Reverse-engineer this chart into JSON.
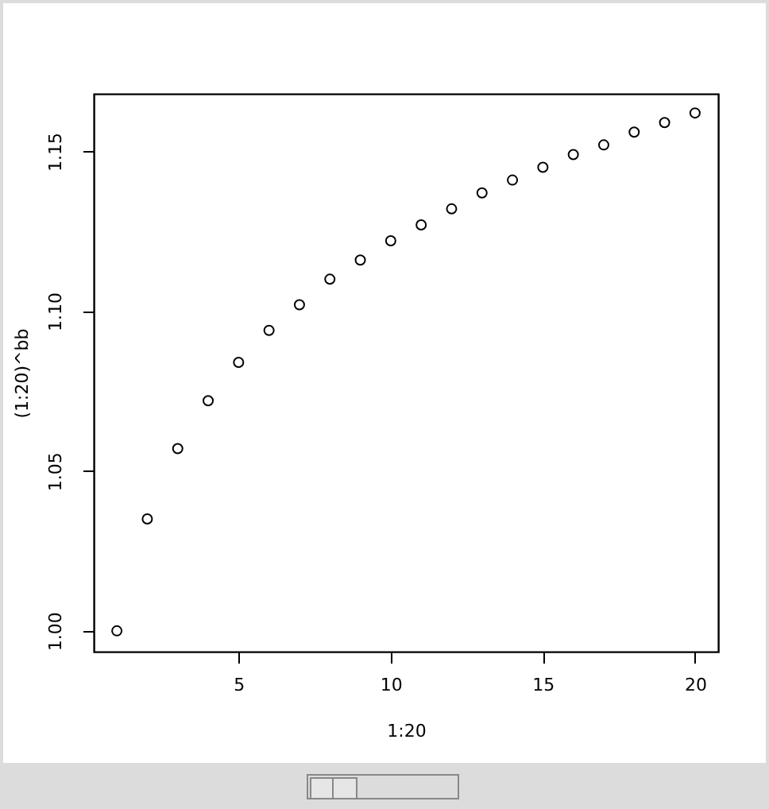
{
  "chart_data": {
    "type": "scatter",
    "xlabel": "1:20",
    "ylabel": "(1:20)^bb",
    "marker": "circle",
    "grid": false,
    "x": [
      1,
      2,
      3,
      4,
      5,
      6,
      7,
      8,
      9,
      10,
      11,
      12,
      13,
      14,
      15,
      16,
      17,
      18,
      19,
      20
    ],
    "series": [
      {
        "color": "#000000",
        "values": [
          1.0,
          1.035,
          1.057,
          1.072,
          1.084,
          1.094,
          1.102,
          1.11,
          1.116,
          1.122,
          1.127,
          1.132,
          1.137,
          1.141,
          1.145,
          1.149,
          1.152,
          1.156,
          1.159,
          1.162
        ]
      }
    ],
    "xlim": [
      0.24,
      20.76
    ],
    "ylim": [
      0.9935,
      1.168
    ],
    "xticks": [
      5,
      10,
      15,
      20
    ],
    "yticks": [
      {
        "value": 1.0,
        "label": "1.00"
      },
      {
        "value": 1.05,
        "label": "1.05"
      },
      {
        "value": 1.1,
        "label": "1.10"
      },
      {
        "value": 1.15,
        "label": "1.15"
      }
    ]
  }
}
